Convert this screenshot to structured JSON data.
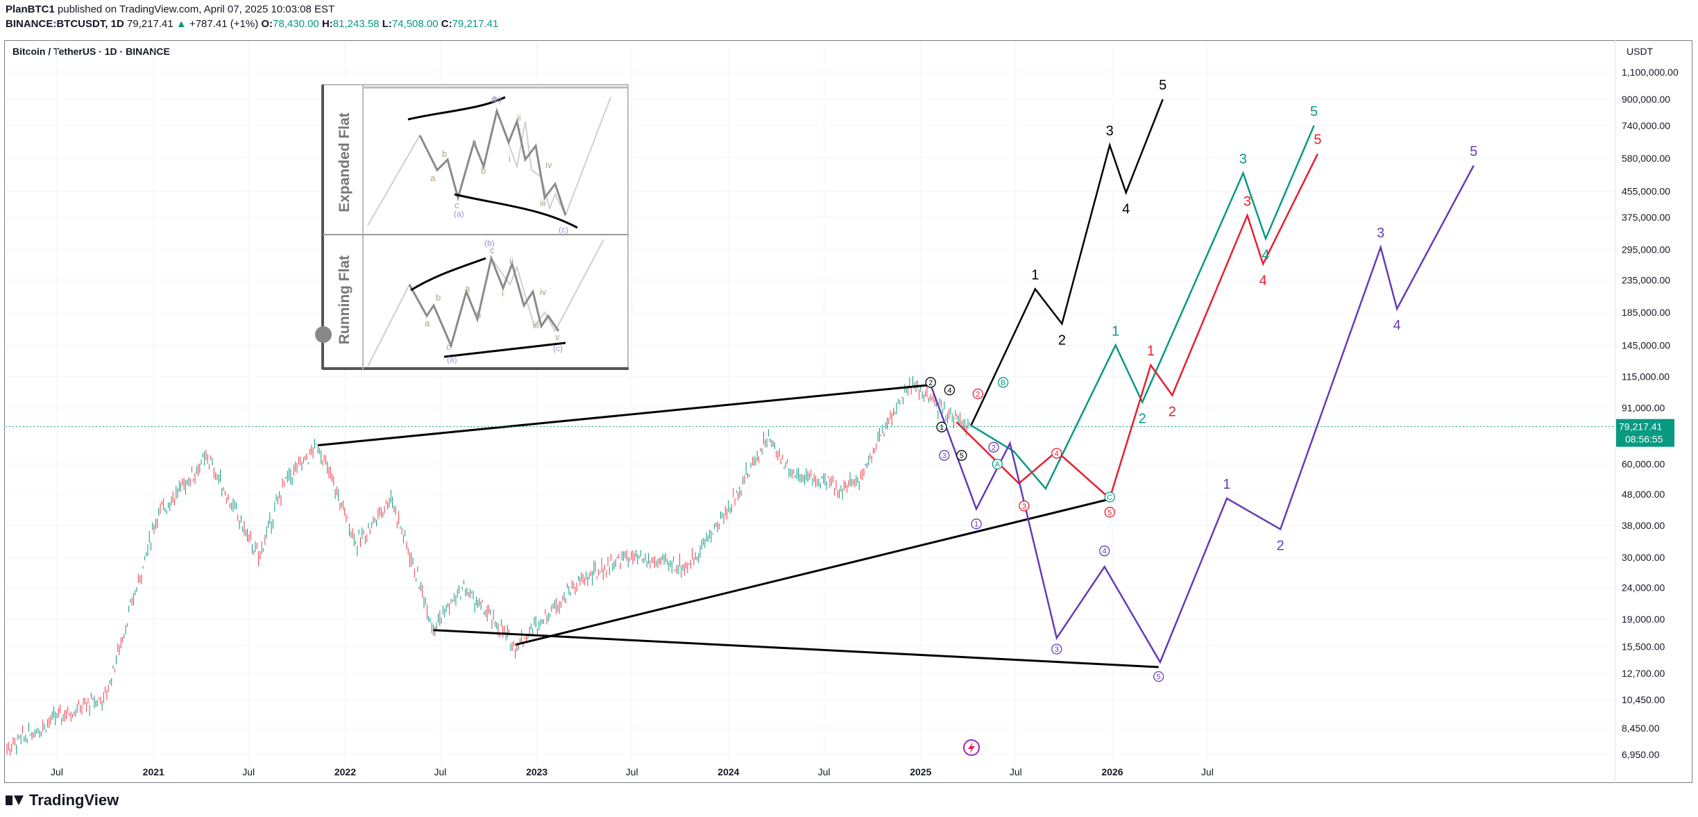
{
  "header": {
    "author": "PlanBTC1",
    "published": "published on TradingView.com, April 07, 2025 10:03:08 EST",
    "symbol_line": "BINANCE:BTCUSDT, 1D",
    "price": "79,217.41",
    "change": "+787.41 (+1%)",
    "o_label": "O:",
    "o_val": "78,430.00",
    "h_label": "H:",
    "h_val": "81,243.58",
    "l_label": "L:",
    "l_val": "74,508.00",
    "c_label": "C:",
    "c_val": "79,217.41"
  },
  "chart_title": "Bitcoin / TetherUS · 1D · BINANCE",
  "unit": "USDT",
  "price_label": {
    "value": "79,217.41",
    "countdown": "08:56:55",
    "color": "#089981"
  },
  "footer": {
    "brand": "TradingView"
  },
  "inset": {
    "top_label": "Expanded Flat",
    "bottom_label": "Running Flat",
    "top_labels": [
      "a",
      "b",
      "c",
      "a",
      "b",
      "c",
      "i",
      "ii",
      "iii",
      "iv",
      "(a)",
      "(b)",
      "(c)"
    ],
    "bottom_labels": [
      "a",
      "b",
      "c",
      "a",
      "b",
      "c",
      "i",
      "ii",
      "iii",
      "iv",
      "v",
      "(a)",
      "(b)",
      "(c)"
    ]
  },
  "colors": {
    "black": "#000000",
    "green": "#089981",
    "red": "#e91e2f",
    "purple": "#673ab7",
    "candle_up": "#089981",
    "candle_down": "#f23645"
  },
  "chart_data": {
    "type": "line",
    "log_scale": true,
    "x_ticks": [
      "Jul",
      "2021",
      "Jul",
      "2022",
      "Jul",
      "2023",
      "Jul",
      "2024",
      "Jul",
      "2025",
      "Jul",
      "2026",
      "Jul"
    ],
    "y_ticks": [
      "1,100,000.00",
      "900,000.00",
      "740,000.00",
      "580,000.00",
      "455,000.00",
      "375,000.00",
      "295,000.00",
      "235,000.00",
      "185,000.00",
      "145,000.00",
      "115,000.00",
      "91,000.00",
      "60,000.00",
      "48,000.00",
      "38,000.00",
      "30,000.00",
      "24,000.00",
      "19,000.00",
      "15,500.00",
      "12,700.00",
      "10,450.00",
      "8,450.00",
      "6,950.00"
    ],
    "price_history": {
      "x": [
        "2020-03-13",
        "2020-07-01",
        "2020-10-01",
        "2021-01-08",
        "2021-04-14",
        "2021-07-20",
        "2021-09-07",
        "2021-11-10",
        "2022-01-24",
        "2022-03-29",
        "2022-06-18",
        "2022-08-15",
        "2022-11-21",
        "2023-03-15",
        "2023-06-15",
        "2023-10-15",
        "2024-01-01",
        "2024-03-14",
        "2024-05-01",
        "2024-08-05",
        "2024-09-06",
        "2024-11-13",
        "2024-12-17",
        "2025-02-03",
        "2025-04-07"
      ],
      "y": [
        7000,
        9200,
        10600,
        41000,
        63000,
        30000,
        52000,
        69000,
        33000,
        47000,
        18000,
        24000,
        15500,
        24500,
        30000,
        28000,
        43000,
        73000,
        56500,
        50000,
        54000,
        91000,
        108000,
        92000,
        79217
      ]
    },
    "trendlines": [
      {
        "color": "black",
        "points": [
          [
            "2021-11-10",
            69000
          ],
          [
            "2025-01-20",
            108000
          ]
        ]
      },
      {
        "color": "black",
        "points": [
          [
            "2022-06-18",
            17500
          ],
          [
            "2026-03-30",
            13300
          ]
        ]
      },
      {
        "color": "black",
        "points": [
          [
            "2022-11-21",
            15700
          ],
          [
            "2026-01-01",
            46500
          ]
        ]
      }
    ],
    "series": [
      {
        "color": "black",
        "points": [
          [
            "2025-04-07",
            80000
          ],
          [
            "2025-08-07",
            220000
          ],
          [
            "2025-09-27",
            170000
          ],
          [
            "2025-12-27",
            640000
          ],
          [
            "2026-01-27",
            450000
          ],
          [
            "2026-04-07",
            900000
          ]
        ],
        "labels": [
          [
            "1",
            "2025-08-07",
            220000,
            "top"
          ],
          [
            "2",
            "2025-09-27",
            170000,
            "bottom"
          ],
          [
            "3",
            "2025-12-27",
            640000,
            "top"
          ],
          [
            "4",
            "2026-01-27",
            450000,
            "bottom"
          ],
          [
            "5",
            "2026-04-07",
            900000,
            "top"
          ]
        ]
      },
      {
        "color": "green",
        "points": [
          [
            "2025-04-07",
            80000
          ],
          [
            "2025-06-27",
            66000
          ],
          [
            "2025-08-27",
            50000
          ],
          [
            "2026-01-07",
            145000
          ],
          [
            "2026-02-27",
            95000
          ],
          [
            "2026-09-07",
            520000
          ],
          [
            "2026-10-20",
            320000
          ],
          [
            "2027-01-20",
            740000
          ]
        ],
        "labels": [
          [
            "1",
            "2026-01-07",
            145000,
            "top"
          ],
          [
            "2",
            "2026-02-27",
            95000,
            "bottom"
          ],
          [
            "3",
            "2026-09-07",
            520000,
            "top"
          ],
          [
            "4",
            "2026-10-20",
            320000,
            "bottom"
          ],
          [
            "5",
            "2027-01-20",
            740000,
            "top"
          ]
        ]
      },
      {
        "color": "red",
        "points": [
          [
            "2025-03-10",
            82000
          ],
          [
            "2025-07-07",
            52000
          ],
          [
            "2025-09-17",
            66000
          ],
          [
            "2025-12-27",
            46500
          ],
          [
            "2026-03-15",
            125000
          ],
          [
            "2026-04-25",
            100000
          ],
          [
            "2026-09-15",
            380000
          ],
          [
            "2026-10-15",
            265000
          ],
          [
            "2027-01-27",
            600000
          ]
        ],
        "labels": [
          [
            "1",
            "2026-03-15",
            125000,
            "top"
          ],
          [
            "2",
            "2026-04-25",
            100000,
            "bottom"
          ],
          [
            "3",
            "2026-09-15",
            380000,
            "top"
          ],
          [
            "4",
            "2026-10-15",
            265000,
            "bottom"
          ],
          [
            "5",
            "2027-01-27",
            600000,
            "top"
          ]
        ]
      },
      {
        "color": "purple",
        "points": [
          [
            "2025-01-20",
            108000
          ],
          [
            "2025-04-17",
            43000
          ],
          [
            "2025-06-20",
            70000
          ],
          [
            "2025-09-17",
            16500
          ],
          [
            "2025-12-17",
            28000
          ],
          [
            "2026-04-02",
            13800
          ],
          [
            "2026-08-07",
            46500
          ],
          [
            "2026-11-17",
            37000
          ],
          [
            "2027-05-27",
            300000
          ],
          [
            "2027-06-27",
            190000
          ],
          [
            "2027-11-20",
            550000
          ]
        ],
        "labels": [
          [
            "1",
            "2026-08-07",
            46500,
            "top"
          ],
          [
            "2",
            "2026-11-17",
            37000,
            "bottom"
          ],
          [
            "3",
            "2027-05-27",
            300000,
            "top"
          ],
          [
            "4",
            "2027-06-27",
            190000,
            "bottom"
          ],
          [
            "5",
            "2027-11-20",
            550000,
            "top"
          ]
        ]
      }
    ],
    "circled_labels": [
      [
        "1",
        "2025-02-10",
        79000,
        "black"
      ],
      [
        "2",
        "2025-01-20",
        110000,
        "black"
      ],
      [
        "3",
        "2025-02-15",
        64000,
        "purple"
      ],
      [
        "4",
        "2025-02-25",
        104000,
        "black"
      ],
      [
        "5",
        "2025-03-20",
        64000,
        "black"
      ],
      [
        "2",
        "2025-04-20",
        101000,
        "red"
      ],
      [
        "3",
        "2025-07-17",
        44000,
        "red"
      ],
      [
        "4",
        "2025-09-17",
        65000,
        "red"
      ],
      [
        "5",
        "2025-12-27",
        42000,
        "red"
      ],
      [
        "B",
        "2025-06-07",
        110000,
        "green"
      ],
      [
        "A",
        "2025-05-27",
        60000,
        "green"
      ],
      [
        "C",
        "2025-12-27",
        47000,
        "green"
      ],
      [
        "1",
        "2025-04-17",
        38500,
        "purple"
      ],
      [
        "2",
        "2025-05-20",
        68000,
        "purple"
      ],
      [
        "3",
        "2025-09-17",
        15200,
        "purple"
      ],
      [
        "4",
        "2025-12-17",
        31500,
        "purple"
      ],
      [
        "5",
        "2026-03-30",
        12400,
        "purple"
      ]
    ],
    "current_price": 79217.41
  }
}
